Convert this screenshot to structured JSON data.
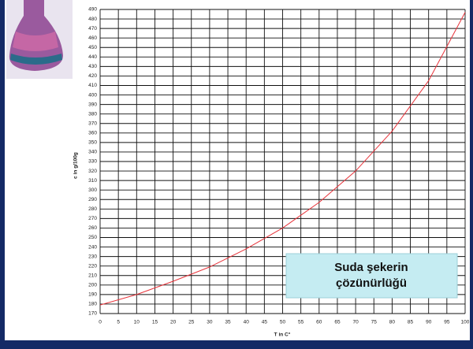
{
  "chart_data": {
    "type": "line",
    "annotation": [
      "Suda şekerin",
      "çözünürlüğü"
    ],
    "x_label": "T in C°",
    "y_label": "c in g/100g",
    "x": [
      0,
      10,
      20,
      30,
      40,
      50,
      60,
      70,
      80,
      90,
      100
    ],
    "values": [
      179,
      190,
      204,
      219,
      238,
      260,
      287,
      320,
      362,
      415,
      487
    ],
    "color": "#e8333a",
    "xlim": [
      0,
      100
    ],
    "xticks": [
      0,
      5,
      10,
      15,
      20,
      25,
      30,
      35,
      40,
      45,
      50,
      55,
      60,
      65,
      70,
      75,
      80,
      85,
      90,
      95,
      100
    ],
    "ylim": [
      170,
      490
    ],
    "yticks": [
      170,
      180,
      190,
      200,
      210,
      220,
      230,
      240,
      250,
      260,
      270,
      280,
      290,
      300,
      310,
      320,
      330,
      340,
      350,
      360,
      370,
      380,
      390,
      400,
      410,
      420,
      430,
      440,
      450,
      460,
      470,
      480,
      490
    ],
    "grid": true
  }
}
